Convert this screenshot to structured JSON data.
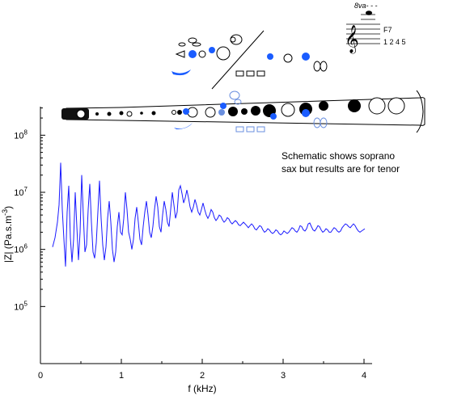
{
  "chart_data": {
    "type": "line",
    "title": "",
    "xlabel": "f (kHz)",
    "ylabel": "|Z| (Pa.s.m⁻³)",
    "ylabel_parts": {
      "pre": "|Z| (Pa.s.m",
      "sup": "-3",
      "post": ")"
    },
    "xlim": [
      0,
      4
    ],
    "ylim_log10": [
      4,
      8.5
    ],
    "y_scale": "log",
    "grid": false,
    "x_ticks": [
      {
        "value": 0,
        "label": "0"
      },
      {
        "value": 1,
        "label": "1"
      },
      {
        "value": 2,
        "label": "2"
      },
      {
        "value": 3,
        "label": "3"
      },
      {
        "value": 4,
        "label": "4"
      }
    ],
    "y_ticks": [
      {
        "exp": 5,
        "label_base": "10",
        "label_exp": "5"
      },
      {
        "exp": 6,
        "label_base": "10",
        "label_exp": "6"
      },
      {
        "exp": 7,
        "label_base": "10",
        "label_exp": "7"
      },
      {
        "exp": 8,
        "label_base": "10",
        "label_exp": "8"
      }
    ],
    "line_color": "#1a1aff",
    "series": [
      {
        "x": [
          0.15,
          0.18,
          0.21,
          0.23,
          0.25,
          0.27,
          0.29,
          0.31,
          0.33,
          0.35,
          0.37,
          0.39,
          0.41,
          0.43,
          0.45,
          0.47,
          0.49,
          0.51,
          0.53,
          0.55,
          0.57,
          0.59,
          0.61,
          0.63,
          0.65,
          0.67,
          0.69,
          0.71,
          0.73,
          0.75,
          0.77,
          0.79,
          0.81,
          0.83,
          0.85,
          0.87,
          0.89,
          0.91,
          0.93,
          0.95,
          0.97,
          0.99,
          1.01,
          1.03,
          1.05,
          1.07,
          1.09,
          1.11,
          1.13,
          1.15,
          1.17,
          1.19,
          1.21,
          1.23,
          1.25,
          1.27,
          1.29,
          1.31,
          1.33,
          1.35,
          1.37,
          1.39,
          1.41,
          1.43,
          1.45,
          1.47,
          1.49,
          1.51,
          1.53,
          1.55,
          1.57,
          1.59,
          1.61,
          1.63,
          1.65,
          1.67,
          1.69,
          1.71,
          1.73,
          1.75,
          1.77,
          1.79,
          1.81,
          1.83,
          1.85,
          1.87,
          1.89,
          1.91,
          1.93,
          1.95,
          1.97,
          1.99,
          2.01,
          2.03,
          2.05,
          2.07,
          2.09,
          2.11,
          2.13,
          2.15,
          2.17,
          2.19,
          2.21,
          2.23,
          2.25,
          2.27,
          2.29,
          2.31,
          2.33,
          2.35,
          2.37,
          2.39,
          2.41,
          2.43,
          2.45,
          2.47,
          2.49,
          2.51,
          2.53,
          2.55,
          2.57,
          2.59,
          2.61,
          2.63,
          2.65,
          2.67,
          2.69,
          2.71,
          2.73,
          2.75,
          2.77,
          2.79,
          2.81,
          2.83,
          2.85,
          2.87,
          2.89,
          2.91,
          2.93,
          2.95,
          2.97,
          2.99,
          3.01,
          3.03,
          3.05,
          3.07,
          3.09,
          3.11,
          3.13,
          3.15,
          3.17,
          3.19,
          3.21,
          3.23,
          3.25,
          3.27,
          3.29,
          3.31,
          3.33,
          3.35,
          3.37,
          3.39,
          3.41,
          3.43,
          3.45,
          3.47,
          3.49,
          3.51,
          3.53,
          3.55,
          3.57,
          3.59,
          3.61,
          3.63,
          3.65,
          3.67,
          3.69,
          3.71,
          3.73,
          3.75,
          3.77,
          3.79,
          3.81,
          3.83,
          3.85,
          3.87,
          3.89,
          3.91,
          3.93,
          3.95,
          3.97,
          3.99,
          4.01
        ],
        "y": [
          1100000.0,
          1600000.0,
          3000000.0,
          6000000.0,
          33000000.0,
          5000000.0,
          1500000.0,
          500000.0,
          4500000.0,
          13000000.0,
          1600000.0,
          600000.0,
          1500000.0,
          10000000.0,
          2500000.0,
          650000.0,
          2000000.0,
          20000000.0,
          4000000.0,
          900000.0,
          1200000.0,
          5000000.0,
          14000000.0,
          3000000.0,
          900000.0,
          700000.0,
          1300000.0,
          4500000.0,
          16000000.0,
          3500000.0,
          1200000.0,
          650000.0,
          1100000.0,
          3500000.0,
          7000000.0,
          3000000.0,
          1000000.0,
          600000.0,
          900000.0,
          2500000.0,
          4500000.0,
          2000000.0,
          1800000.0,
          3500000.0,
          10000000.0,
          5000000.0,
          2000000.0,
          1500000.0,
          1000000.0,
          1500000.0,
          3500000.0,
          5500000.0,
          3000000.0,
          1500000.0,
          1200000.0,
          2500000.0,
          4500000.0,
          7000000.0,
          4000000.0,
          2000000.0,
          1600000.0,
          2500000.0,
          5000000.0,
          8500000.0,
          5500000.0,
          2500000.0,
          2000000.0,
          4000000.0,
          7000000.0,
          5000000.0,
          3000000.0,
          2500000.0,
          5000000.0,
          10000000.0,
          6000000.0,
          3500000.0,
          4500000.0,
          11000000.0,
          13000000.0,
          9500000.0,
          6500000.0,
          8000000.0,
          11000000.0,
          8000000.0,
          5500000.0,
          4500000.0,
          5500000.0,
          7500000.0,
          6000000.0,
          4500000.0,
          4000000.0,
          5000000.0,
          6500000.0,
          5000000.0,
          4000000.0,
          3500000.0,
          4000000.0,
          5000000.0,
          4500000.0,
          3600000.0,
          3200000.0,
          3500000.0,
          4000000.0,
          3800000.0,
          3300000.0,
          3000000.0,
          3200000.0,
          3600000.0,
          3400000.0,
          3000000.0,
          2800000.0,
          3000000.0,
          3200000.0,
          3000000.0,
          2700000.0,
          2600000.0,
          2800000.0,
          3000000.0,
          2800000.0,
          2600000.0,
          2400000.0,
          2600000.0,
          2800000.0,
          2600000.0,
          2300000.0,
          2200000.0,
          2400000.0,
          2600000.0,
          2500000.0,
          2200000.0,
          2000000.0,
          2100000.0,
          2300000.0,
          2200000.0,
          2000000.0,
          1900000.0,
          2000000.0,
          2200000.0,
          2100000.0,
          1900000.0,
          1800000.0,
          1900000.0,
          2100000.0,
          2000000.0,
          1900000.0,
          2000000.0,
          2200000.0,
          2400000.0,
          2300000.0,
          2100000.0,
          2000000.0,
          2200000.0,
          2600000.0,
          2500000.0,
          2200000.0,
          2100000.0,
          2300000.0,
          2800000.0,
          2900000.0,
          2500000.0,
          2200000.0,
          2100000.0,
          2300000.0,
          2600000.0,
          2500000.0,
          2200000.0,
          2000000.0,
          2100000.0,
          2300000.0,
          2200000.0,
          2000000.0,
          2000000.0,
          2200000.0,
          2400000.0,
          2300000.0,
          2100000.0,
          2000000.0,
          2100000.0,
          2400000.0,
          2600000.0,
          2800000.0,
          2700000.0,
          2500000.0,
          2400000.0,
          2600000.0,
          2800000.0,
          2600000.0,
          2300000.0,
          2100000.0,
          2000000.0,
          2100000.0,
          2200000.0,
          2300000.0
        ]
      }
    ]
  },
  "annotation": {
    "line1": "Schematic shows soprano",
    "line2": "sax but results are for tenor"
  },
  "fingering": {
    "octave_mark": "8va- - -",
    "note_name": "F7",
    "keys": "1 2 4 5"
  },
  "colors": {
    "key_blue": "#1a5cff",
    "key_light_blue": "#6a8fdf",
    "line": "#1a1aff"
  }
}
